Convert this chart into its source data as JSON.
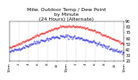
{
  "title": "Milw. Outdoor Temp / Dew Point\nby Minute\n(24 Hours) (Alternate)",
  "title_fontsize": 4.5,
  "bg_color": "#ffffff",
  "grid_color": "#aaaaaa",
  "temp_color": "#dd0000",
  "dew_color": "#0000cc",
  "ylim": [
    20,
    90
  ],
  "xlim": [
    0,
    1440
  ],
  "yticks": [
    20,
    30,
    40,
    50,
    60,
    70,
    80,
    90
  ],
  "ytick_labels": [
    "20",
    "30",
    "40",
    "50",
    "60",
    "70",
    "80",
    "90"
  ],
  "ytick_fontsize": 3.5,
  "xtick_fontsize": 3.0,
  "xticks": [
    0,
    120,
    240,
    360,
    480,
    600,
    720,
    840,
    960,
    1080,
    1200,
    1320,
    1440
  ],
  "xtick_labels": [
    "12am",
    "2",
    "4",
    "6",
    "8",
    "10",
    "12pm",
    "2",
    "4",
    "6",
    "8",
    "10",
    "12am"
  ],
  "marker_size": 0.6
}
